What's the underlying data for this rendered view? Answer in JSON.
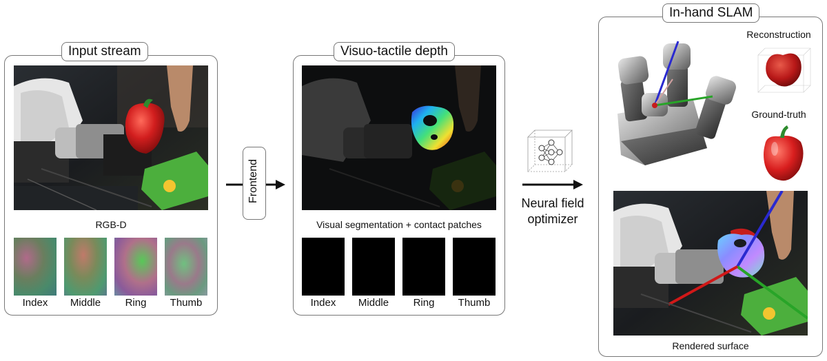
{
  "panels": {
    "input": {
      "title": "Input stream",
      "main_caption": "RGB-D",
      "tactile": [
        "Index",
        "Middle",
        "Ring",
        "Thumb"
      ]
    },
    "depth": {
      "title": "Visuo-tactile depth",
      "main_caption": "Visual segmentation + contact patches",
      "tactile": [
        "Index",
        "Middle",
        "Ring",
        "Thumb"
      ]
    },
    "slam": {
      "title": "In-hand SLAM",
      "reconstruction_label": "Reconstruction",
      "ground_truth_label": "Ground-truth",
      "rendered_caption": "Rendered surface"
    }
  },
  "connectors": {
    "frontend_label": "Frontend",
    "optimizer_label_line1": "Neural field",
    "optimizer_label_line2": "optimizer"
  },
  "colors": {
    "frame": "#777777",
    "pepper_red": "#c61c1c",
    "leaf_green": "#2e8b2e"
  }
}
